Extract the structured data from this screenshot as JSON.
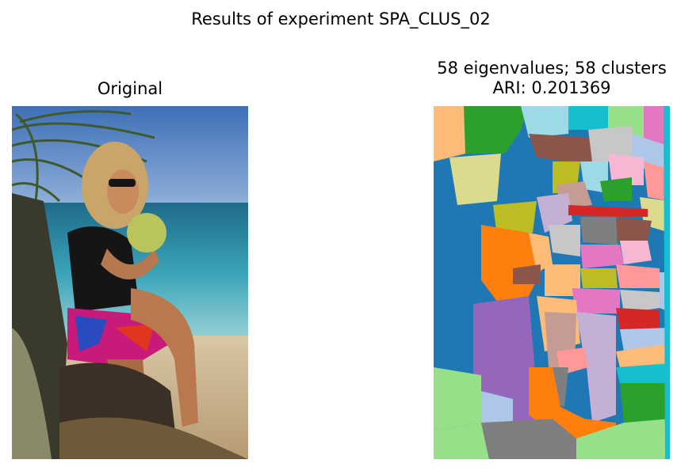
{
  "figure": {
    "suptitle": "Results of experiment SPA_CLUS_02"
  },
  "left_panel": {
    "title": "Original"
  },
  "right_panel": {
    "title_line1": "58 eigenvalues; 58 clusters",
    "title_line2": "ARI: 0.201369"
  },
  "colors": {
    "blue": "#1f77b4",
    "orange": "#ff7f0e",
    "green": "#2ca02c",
    "red": "#d62728",
    "purple": "#9467bd",
    "brown": "#8c564b",
    "pink": "#e377c2",
    "gray": "#7f7f7f",
    "olive": "#bcbd22",
    "cyan": "#17becf",
    "light_blue": "#aec7e8",
    "light_orange": "#ffbb78",
    "light_green": "#98df8a",
    "light_red": "#ff9896",
    "light_purple": "#c5b0d5",
    "light_brown": "#c49c94",
    "light_pink": "#f7b6d2",
    "light_gray": "#c7c7c7",
    "light_olive": "#dbdb8d",
    "light_cyan": "#9edae5"
  }
}
